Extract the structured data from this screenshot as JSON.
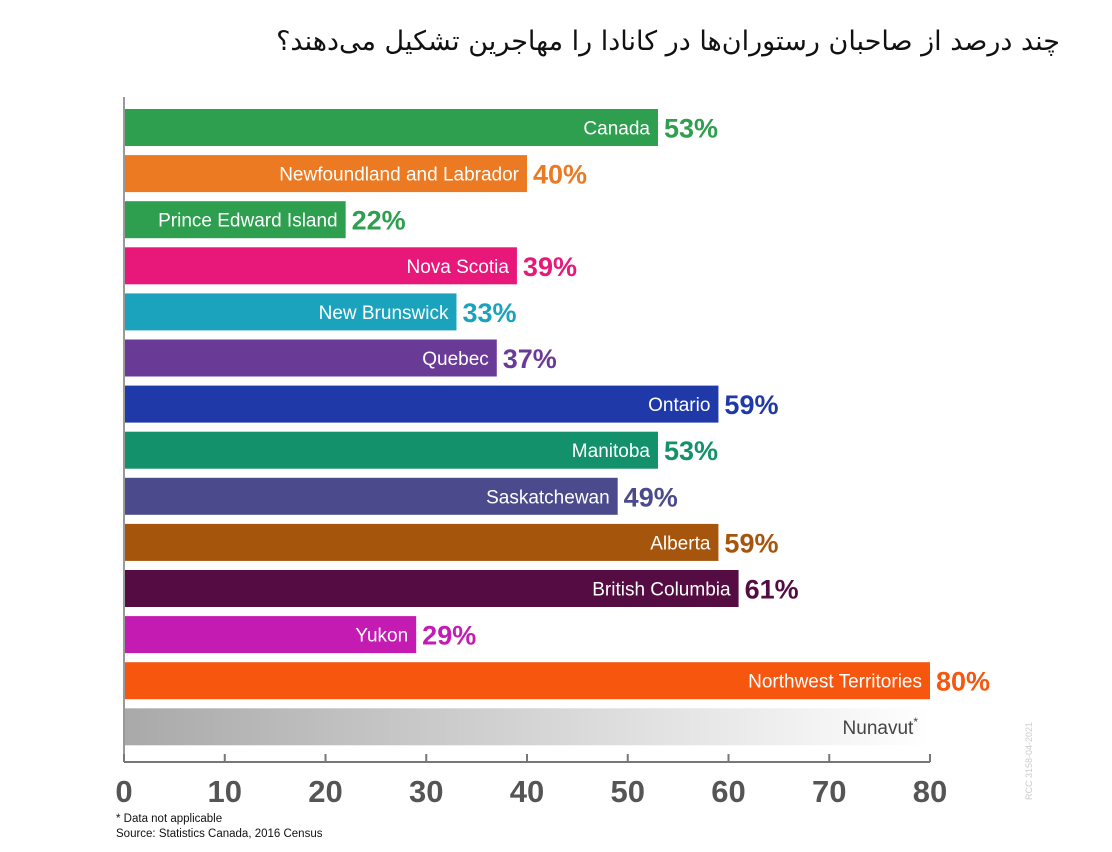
{
  "chart_data": {
    "type": "bar",
    "orientation": "horizontal",
    "title": "چند درصد از صاحبان رستوران‌ها در کانادا را مهاجرین تشکیل می‌دهند؟",
    "xlim": [
      0,
      80
    ],
    "xticks": [
      0,
      10,
      20,
      30,
      40,
      50,
      60,
      70,
      80
    ],
    "grid": false,
    "bars": [
      {
        "category": "Canada",
        "value": 53,
        "value_label": "53%",
        "color": "#2e9e4f"
      },
      {
        "category": "Newfoundland and Labrador",
        "value": 40,
        "value_label": "40%",
        "color": "#ec7a22"
      },
      {
        "category": "Prince Edward Island",
        "value": 22,
        "value_label": "22%",
        "color": "#2e9e4f"
      },
      {
        "category": "Nova Scotia",
        "value": 39,
        "value_label": "39%",
        "color": "#e8177a"
      },
      {
        "category": "New Brunswick",
        "value": 33,
        "value_label": "33%",
        "color": "#1ba3bd"
      },
      {
        "category": "Quebec",
        "value": 37,
        "value_label": "37%",
        "color": "#6a3b96"
      },
      {
        "category": "Ontario",
        "value": 59,
        "value_label": "59%",
        "color": "#1f39a8"
      },
      {
        "category": "Manitoba",
        "value": 53,
        "value_label": "53%",
        "color": "#13916a"
      },
      {
        "category": "Saskatchewan",
        "value": 49,
        "value_label": "49%",
        "color": "#4b4a8c"
      },
      {
        "category": "Alberta",
        "value": 59,
        "value_label": "59%",
        "color": "#a6550d"
      },
      {
        "category": "British Columbia",
        "value": 61,
        "value_label": "61%",
        "color": "#550c42"
      },
      {
        "category": "Yukon",
        "value": 29,
        "value_label": "29%",
        "color": "#c41cb3"
      },
      {
        "category": "Northwest Territories",
        "value": 80,
        "value_label": "80%",
        "color": "#f6560e"
      },
      {
        "category": "Nunavut",
        "value": null,
        "value_label": "",
        "not_applicable": true,
        "marker": "*"
      }
    ]
  },
  "footnotes": {
    "na_note": "* Data not applicable",
    "source": "Source: Statistics Canada, 2016 Census"
  },
  "watermark": "RCC 3158-04-2021"
}
